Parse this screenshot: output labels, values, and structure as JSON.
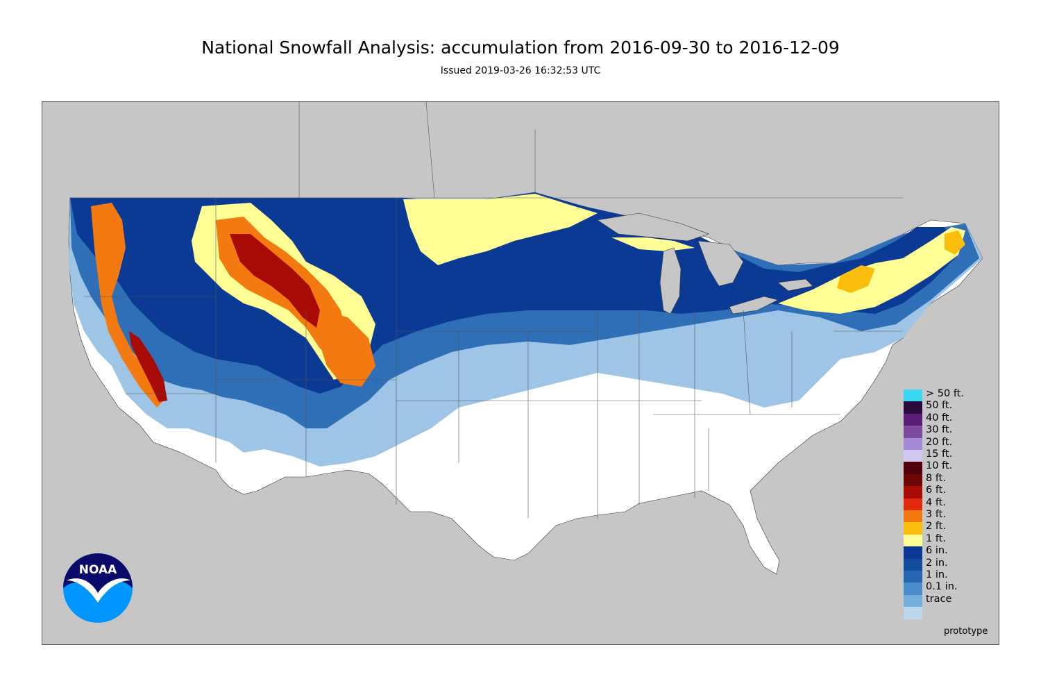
{
  "title": "National Snowfall Analysis: accumulation from 2016-09-30 to 2016-12-09",
  "subtitle": "Issued 2019-03-26 16:32:53 UTC",
  "logo": {
    "text": "NOAA",
    "icon": "noaa-logo-icon"
  },
  "watermark": "prototype",
  "colors": {
    "background_land": "#c6c6c6",
    "water": "#c6c6c6",
    "no_snow": "#ffffff",
    "noaa_dark": "#0a0a6b",
    "noaa_light": "#0096ff"
  },
  "legend": {
    "items": [
      {
        "label": "> 50 ft.",
        "color": "#3ad7f4"
      },
      {
        "label": "50 ft.",
        "color": "#2b0a3d"
      },
      {
        "label": "40 ft.",
        "color": "#5a1e78"
      },
      {
        "label": "30 ft.",
        "color": "#7e4a9e"
      },
      {
        "label": "20 ft.",
        "color": "#a48ad6"
      },
      {
        "label": "15 ft.",
        "color": "#d0c8f2"
      },
      {
        "label": "10 ft.",
        "color": "#52000a"
      },
      {
        "label": "8 ft.",
        "color": "#6e0606"
      },
      {
        "label": "6 ft.",
        "color": "#a80b05"
      },
      {
        "label": "4 ft.",
        "color": "#e32a0f"
      },
      {
        "label": "3 ft.",
        "color": "#f27a10"
      },
      {
        "label": "2 ft.",
        "color": "#fbbd0c"
      },
      {
        "label": "1 ft.",
        "color": "#ffff96"
      },
      {
        "label": "6 in.",
        "color": "#0b3796"
      },
      {
        "label": "2 in.",
        "color": "#114d9c"
      },
      {
        "label": "1 in.",
        "color": "#2767b2"
      },
      {
        "label": "0.1 in.",
        "color": "#4a8ecb"
      },
      {
        "label": "trace",
        "color": "#74aedc"
      },
      {
        "label": "",
        "color": "#bcd7ec"
      }
    ]
  }
}
